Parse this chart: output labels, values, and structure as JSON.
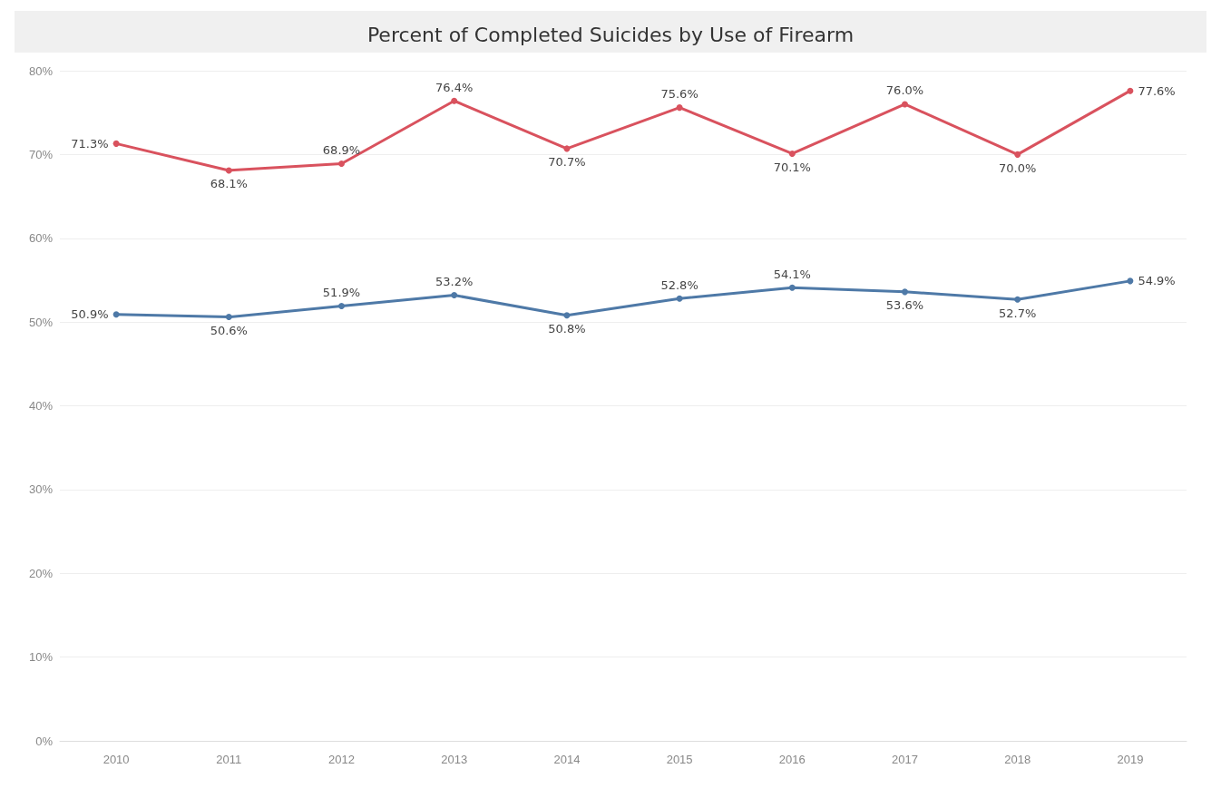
{
  "chart_data": {
    "type": "line",
    "title": "Percent of Completed Suicides by Use of Firearm",
    "categories": [
      "2010",
      "2011",
      "2012",
      "2013",
      "2014",
      "2015",
      "2016",
      "2017",
      "2018",
      "2019"
    ],
    "series": [
      {
        "color": "#d9525e",
        "values": [
          71.3,
          68.1,
          68.9,
          76.4,
          70.7,
          75.6,
          70.1,
          76.0,
          70.0,
          77.6
        ],
        "value_labels": [
          "71.3%",
          "68.1%",
          "68.9%",
          "76.4%",
          "70.7%",
          "75.6%",
          "70.1%",
          "76.0%",
          "70.0%",
          "77.6%"
        ]
      },
      {
        "color": "#4e79a7",
        "values": [
          50.9,
          50.6,
          51.9,
          53.2,
          50.8,
          52.8,
          54.1,
          53.6,
          52.7,
          54.9
        ],
        "value_labels": [
          "50.9%",
          "50.6%",
          "51.9%",
          "53.2%",
          "50.8%",
          "52.8%",
          "54.1%",
          "53.6%",
          "52.7%",
          "54.9%"
        ]
      }
    ],
    "ylim": [
      0,
      80
    ],
    "yticks": [
      {
        "value": 0,
        "label": "0%"
      },
      {
        "value": 10,
        "label": "10%"
      },
      {
        "value": 20,
        "label": "20%"
      },
      {
        "value": 30,
        "label": "30%"
      },
      {
        "value": 40,
        "label": "40%"
      },
      {
        "value": 50,
        "label": "50%"
      },
      {
        "value": 60,
        "label": "60%"
      },
      {
        "value": 70,
        "label": "70%"
      },
      {
        "value": 80,
        "label": "80%"
      }
    ],
    "grid": "y",
    "marker": "circle",
    "line_style": "solid"
  }
}
